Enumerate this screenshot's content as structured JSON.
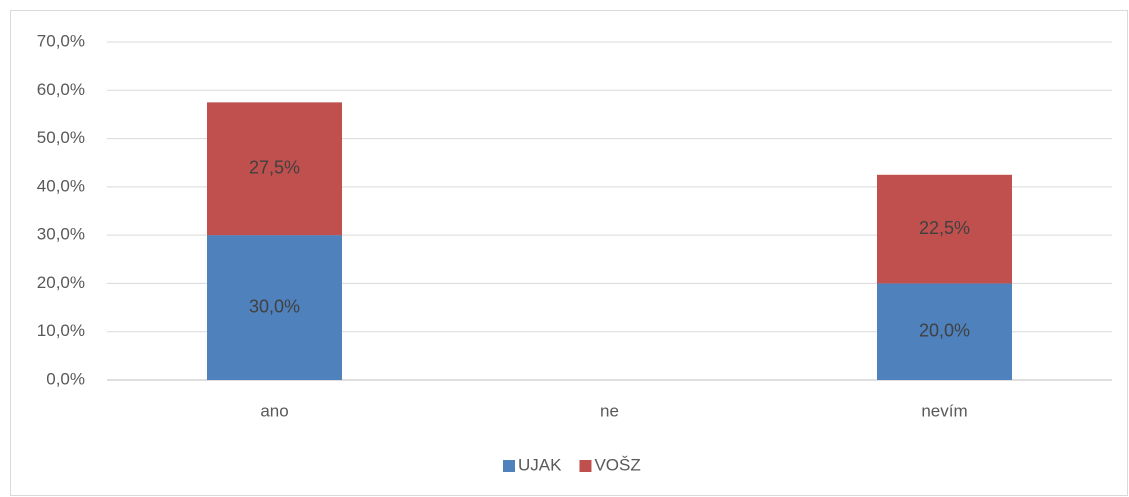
{
  "chart_data": {
    "type": "stacked_bar",
    "categories": [
      "ano",
      "ne",
      "nevím"
    ],
    "series": [
      {
        "name": "UJAK",
        "color": "#4f81bd",
        "values": [
          30,
          0,
          20
        ],
        "value_labels": [
          "30,0%",
          null,
          "20,0%"
        ]
      },
      {
        "name": "VOŠZ",
        "color": "#c0504d",
        "values": [
          27.5,
          0,
          22.5
        ],
        "value_labels": [
          "27,5%",
          null,
          "22,5%"
        ]
      }
    ],
    "ylim": [
      0,
      70
    ],
    "yticks": [
      {
        "value": 0,
        "label": "0,0%"
      },
      {
        "value": 10,
        "label": "10,0%"
      },
      {
        "value": 20,
        "label": "20,0%"
      },
      {
        "value": 30,
        "label": "30,0%"
      },
      {
        "value": 40,
        "label": "40,0%"
      },
      {
        "value": 50,
        "label": "50,0%"
      },
      {
        "value": 60,
        "label": "60,0%"
      },
      {
        "value": 70,
        "label": "70,0%"
      }
    ],
    "grid": true,
    "legend": "bottom"
  }
}
